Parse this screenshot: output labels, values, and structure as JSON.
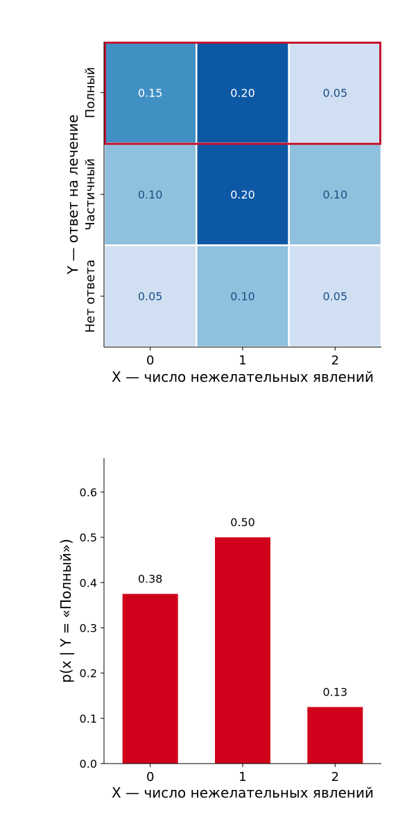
{
  "chart_data": [
    {
      "type": "heatmap",
      "xlabel": "X — число нежелательных явлений",
      "ylabel": "Y — ответ на лечение",
      "x_categories": [
        "0",
        "1",
        "2"
      ],
      "y_categories": [
        "Полный",
        "Частичный",
        "Нет ответа"
      ],
      "values": [
        [
          0.15,
          0.2,
          0.05
        ],
        [
          0.1,
          0.2,
          0.1
        ],
        [
          0.05,
          0.1,
          0.05
        ]
      ],
      "cell_labels": [
        [
          "0.15",
          "0.20",
          "0.05"
        ],
        [
          "0.10",
          "0.20",
          "0.10"
        ],
        [
          "0.05",
          "0.10",
          "0.05"
        ]
      ],
      "colormap": "Blues",
      "highlighted_row": "Полный",
      "highlight_color": "#c8102e"
    },
    {
      "type": "bar",
      "categories": [
        "0",
        "1",
        "2"
      ],
      "values": [
        0.375,
        0.5,
        0.125
      ],
      "value_labels": [
        "0.38",
        "0.50",
        "0.13"
      ],
      "xlabel": "X — число нежелательных явлений",
      "ylabel": "p(x | Y = «Полный»)",
      "ylim": [
        0,
        0.675
      ],
      "yticks": [
        "0.0",
        "0.1",
        "0.2",
        "0.3",
        "0.4",
        "0.5",
        "0.6"
      ],
      "bar_color": "#d0021b"
    }
  ]
}
